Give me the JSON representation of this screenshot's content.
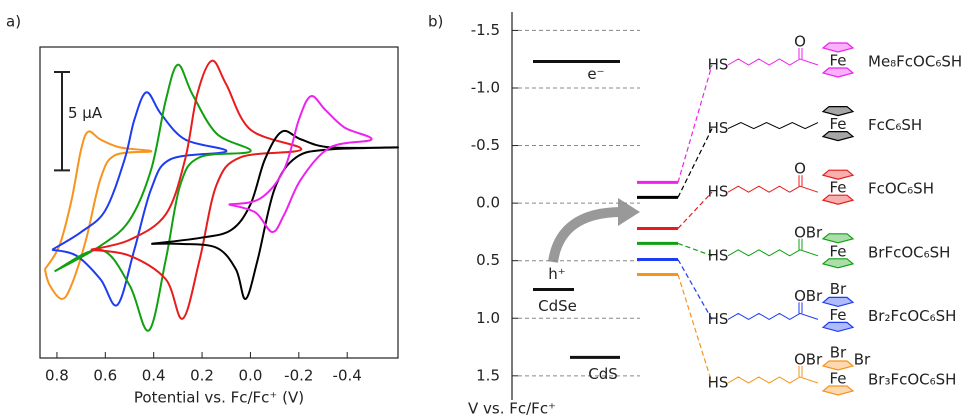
{
  "chart_data": [
    {
      "type": "line",
      "panel": "a)",
      "xlabel": "Potential vs. Fc/Fc⁺ (V)",
      "xlim": [
        0.87,
        -0.61
      ],
      "ylim": [
        -6,
        9.8
      ],
      "xticks": [
        0.8,
        0.6,
        0.4,
        0.2,
        {
          "value": 0,
          "label": "0.0"
        },
        -0.2,
        -0.4
      ],
      "scale_bar": {
        "value": 5,
        "label": "5 µA"
      },
      "series": [
        {
          "color": "#f7931e",
          "x": [
            0.85,
            0.79,
            0.74,
            0.7,
            0.67,
            0.62,
            0.54,
            0.41,
            0.56,
            0.62,
            0.68,
            0.74,
            0.78,
            0.83,
            0.85
          ],
          "values": [
            -1.5,
            -0.3,
            2.0,
            4.6,
            5.5,
            5.1,
            4.7,
            4.5,
            4.3,
            3.1,
            0,
            -2.3,
            -3.0,
            -2.3,
            -1.5
          ]
        },
        {
          "color": "#1e3cf0",
          "x": [
            0.82,
            0.7,
            0.6,
            0.52,
            0.48,
            0.43,
            0.37,
            0.27,
            0.1,
            0.33,
            0.41,
            0.48,
            0.55,
            0.62,
            0.72,
            0.82
          ],
          "values": [
            -0.5,
            0.4,
            1.5,
            4.1,
            6.1,
            7.5,
            6.4,
            5.1,
            4.5,
            4.1,
            2.6,
            -0.5,
            -3.3,
            -2.0,
            -0.8,
            -0.5
          ]
        },
        {
          "color": "#10a010",
          "x": [
            0.81,
            0.62,
            0.5,
            0.41,
            0.35,
            0.3,
            0.24,
            0.14,
            0,
            0.21,
            0.29,
            0.35,
            0.42,
            0.5,
            0.62,
            0.81
          ],
          "values": [
            -1.6,
            -0.3,
            1.0,
            3.6,
            7.1,
            8.9,
            7.4,
            5.4,
            4.5,
            4.2,
            2.8,
            -1.0,
            -4.6,
            -2.3,
            -0.5,
            -1.6
          ]
        },
        {
          "color": "#e81c1c",
          "x": [
            0.66,
            0.5,
            0.35,
            0.27,
            0.22,
            0.16,
            0.1,
            0,
            -0.21,
            0.04,
            0.14,
            0.21,
            0.28,
            0.35,
            0.5,
            0.66
          ],
          "values": [
            -0.5,
            0,
            1.3,
            4.1,
            7.4,
            9.1,
            7.9,
            5.6,
            4.6,
            4.2,
            2.8,
            -1.0,
            -4.0,
            -2.0,
            -0.8,
            -0.5
          ]
        },
        {
          "color": "#000000",
          "x": [
            0.41,
            0.21,
            0.08,
            0,
            -0.06,
            -0.13,
            -0.21,
            -0.33,
            -0.61,
            -0.33,
            -0.19,
            -0.1,
            -0.03,
            0.02,
            0.06,
            0.14,
            0.29,
            0.41
          ],
          "values": [
            -0.2,
            0.1,
            0.5,
            1.8,
            4.1,
            5.5,
            5.1,
            4.7,
            4.7,
            4.6,
            4.2,
            2.6,
            -1.0,
            -3.0,
            -1.5,
            -0.4,
            -0.2,
            -0.2
          ]
        },
        {
          "color": "#ee22ee",
          "x": [
            0.09,
            -0.04,
            -0.14,
            -0.2,
            -0.25,
            -0.31,
            -0.39,
            -0.5,
            -0.33,
            -0.21,
            -0.14,
            -0.09,
            -0.02,
            0.09
          ],
          "values": [
            1.8,
            2.1,
            3.6,
            6.1,
            7.3,
            6.6,
            5.7,
            5.1,
            4.7,
            3.1,
            1.3,
            0.4,
            1.4,
            1.8
          ]
        }
      ]
    },
    {
      "type": "energy-level",
      "panel": "b)",
      "ylabel": "V vs. Fc/Fc⁺",
      "ylim": [
        -1.66,
        1.71
      ],
      "grid": true,
      "yticks": [
        -1.5,
        {
          "value": -1,
          "label": "-1.0"
        },
        -0.5,
        {
          "value": 0,
          "label": "0.0"
        },
        0.5,
        {
          "value": 1,
          "label": "1.0"
        },
        1.5
      ],
      "bands": [
        {
          "value": -1.23,
          "label": "e⁻"
        },
        {
          "value": 0.75,
          "label": "h⁺",
          "material": "CdSe"
        },
        {
          "value": 1.34,
          "material": "CdS"
        }
      ],
      "levels": [
        {
          "name": "Me₈FcOC₆SH",
          "color": "#ee22ee",
          "value": -0.18,
          "atoms": [
            "HS",
            "O",
            "Fe"
          ]
        },
        {
          "name": "FcC₆SH",
          "color": "#000000",
          "value": -0.05,
          "atoms": [
            "HS",
            "Fe"
          ]
        },
        {
          "name": "FcOC₆SH",
          "color": "#e81c1c",
          "value": 0.22,
          "atoms": [
            "HS",
            "O",
            "Fe"
          ]
        },
        {
          "name": "BrFcOC₆SH",
          "color": "#10a010",
          "value": 0.35,
          "atoms": [
            "HS",
            "O",
            "Fe",
            "Br"
          ]
        },
        {
          "name": "Br₂FcOC₆SH",
          "color": "#1e3cf0",
          "value": 0.49,
          "atoms": [
            "HS",
            "O",
            "Fe",
            "Br",
            "Br"
          ]
        },
        {
          "name": "Br₃FcOC₆SH",
          "color": "#f7931e",
          "value": 0.62,
          "atoms": [
            "HS",
            "O",
            "Fe",
            "Br",
            "Br",
            "Br"
          ]
        }
      ]
    }
  ]
}
